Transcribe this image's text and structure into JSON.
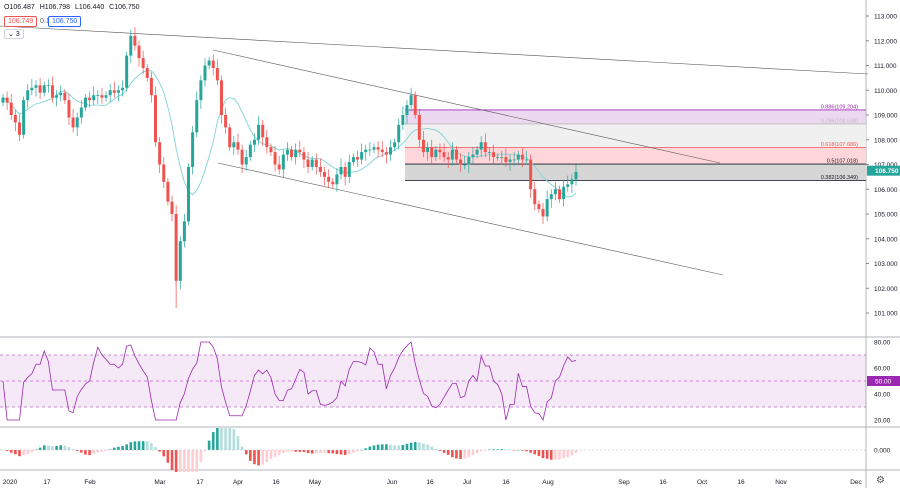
{
  "legend": {
    "open": "O106.487",
    "high": "H106.798",
    "low": "L106.440",
    "close": "C106.750",
    "bid": "106.749",
    "spread": "0.1",
    "ask": "106.750",
    "indicators_count": "3"
  },
  "colors": {
    "up": "#26a69a",
    "down": "#ef5350",
    "ma": "#7fd3d4",
    "rsi": "#9c27b0",
    "fib_886": "#9c27b0",
    "fib_618": "#ef5350",
    "fib_05": "#131722"
  },
  "price_axis": {
    "labels": [
      "113.000",
      "112.000",
      "111.000",
      "110.000",
      "109.000",
      "108.000",
      "107.000",
      "106.000",
      "105.000",
      "104.000",
      "103.000",
      "102.000",
      "101.000"
    ],
    "current": "106.750"
  },
  "rsi_axis": {
    "labels": [
      "80.00",
      "60.00",
      "40.00",
      "20.00"
    ],
    "current": "50.00"
  },
  "macd_axis": {
    "labels": [
      "0.000"
    ]
  },
  "time_axis": {
    "labels": [
      "2020",
      "17",
      "Feb",
      "Mar",
      "17",
      "Apr",
      "16",
      "May",
      "Jun",
      "16",
      "Jul",
      "16",
      "Aug",
      "Sep",
      "16",
      "Oct",
      "16",
      "Nov",
      "Dec"
    ]
  },
  "fib_labels": {
    "l886": "0.886(109.204)",
    "l786": "0.786(108.638)",
    "l618": "0.618(107.686)",
    "l05": "0.5(107.018)",
    "l382": "0.382(106.349)"
  },
  "chart_data": {
    "type": "candlestick",
    "symbol_price_range": [
      100.6,
      113.3
    ],
    "closes": [
      109.7,
      109.5,
      109.0,
      108.7,
      108.2,
      109.6,
      110.0,
      110.1,
      110.2,
      109.9,
      110.2,
      110.2,
      109.7,
      109.8,
      109.9,
      109.6,
      108.9,
      108.5,
      108.9,
      109.3,
      109.7,
      109.6,
      109.8,
      109.8,
      109.7,
      109.8,
      110.0,
      109.9,
      110.0,
      110.1,
      111.4,
      112.2,
      111.8,
      111.3,
      110.9,
      110.5,
      109.8,
      107.9,
      107.0,
      106.3,
      105.5,
      105.0,
      102.3,
      103.9,
      104.7,
      106.9,
      108.3,
      109.6,
      110.4,
      111.0,
      111.2,
      110.9,
      110.4,
      109.0,
      108.5,
      107.7,
      107.9,
      107.6,
      107.0,
      107.3,
      107.8,
      108.0,
      108.6,
      108.1,
      107.7,
      107.5,
      107.0,
      106.8,
      107.4,
      107.6,
      107.3,
      107.6,
      107.5,
      107.2,
      106.9,
      107.2,
      106.9,
      106.7,
      106.5,
      106.3,
      106.2,
      106.6,
      106.9,
      106.5,
      107.1,
      107.3,
      107.2,
      107.5,
      107.6,
      107.6,
      107.7,
      107.6,
      107.5,
      107.4,
      107.7,
      107.9,
      108.6,
      109.0,
      109.4,
      109.8,
      109.0,
      108.0,
      107.5,
      107.7,
      107.3,
      107.6,
      107.5,
      107.3,
      107.2,
      107.6,
      107.2,
      107.0,
      107.0,
      107.3,
      107.4,
      107.6,
      107.9,
      107.5,
      107.5,
      107.3,
      107.3,
      107.3,
      107.1,
      107.2,
      107.2,
      107.4,
      107.2,
      107.2,
      106.0,
      105.4,
      105.2,
      104.9,
      105.6,
      105.8,
      106.0,
      105.6,
      106.1,
      106.2,
      106.4,
      106.7
    ],
    "rsi_levels": {
      "upper": 70,
      "mid": 50,
      "lower": 30
    },
    "rsi_last": 50,
    "fib_levels": [
      {
        "ratio": "0.886",
        "price": 109.204
      },
      {
        "ratio": "0.786",
        "price": 108.638
      },
      {
        "ratio": "0.618",
        "price": 107.686
      },
      {
        "ratio": "0.5",
        "price": 107.018
      },
      {
        "ratio": "0.382",
        "price": 106.349
      }
    ]
  }
}
